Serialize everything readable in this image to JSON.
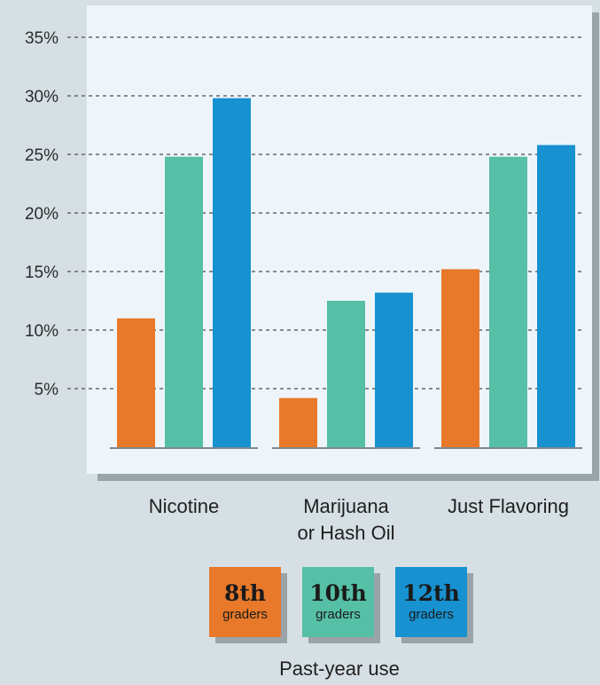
{
  "chart_data": {
    "type": "bar",
    "categories": [
      "Nicotine",
      "Marijuana\nor Hash Oil",
      "Just Flavoring"
    ],
    "series": [
      {
        "name": "8th graders",
        "big": "8th",
        "small": "graders",
        "color": "#e8792a",
        "values": [
          11,
          4.2,
          15.2
        ]
      },
      {
        "name": "10th graders",
        "big": "10th",
        "small": "graders",
        "color": "#55c0a6",
        "values": [
          24.8,
          12.5,
          24.8
        ]
      },
      {
        "name": "12th graders",
        "big": "12th",
        "small": "graders",
        "color": "#1791d0",
        "values": [
          29.8,
          13.2,
          25.8
        ]
      }
    ],
    "yticks": [
      5,
      10,
      15,
      20,
      25,
      30,
      35
    ],
    "ytick_labels": [
      "5%",
      "10%",
      "15%",
      "20%",
      "25%",
      "30%",
      "35%"
    ],
    "ylim": [
      0,
      35
    ],
    "grid": true,
    "xlabel": "Past-year use",
    "legend_position": "bottom"
  },
  "colors": {
    "page_bg": "#d6dfe3",
    "plot_bg": "#eef5fa",
    "gridline": "#666666",
    "shadow": "#9aa3a8"
  }
}
